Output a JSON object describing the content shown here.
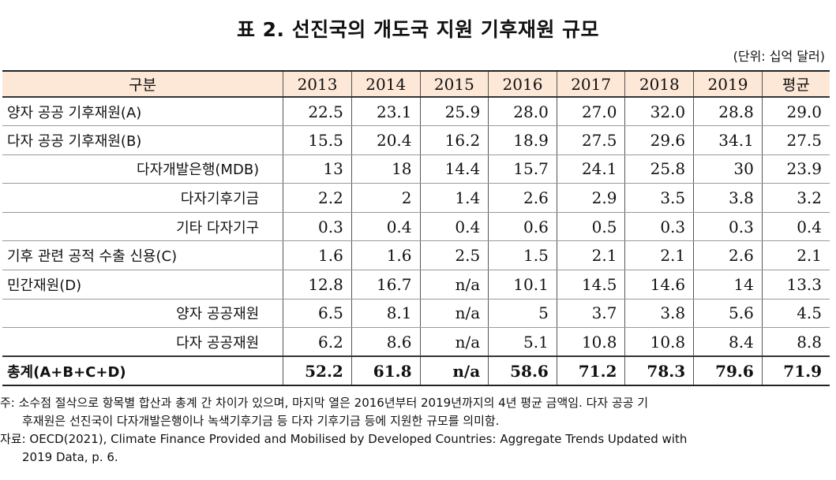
{
  "title": "표 2. 선진국의 개도국 지원 기후재원 규모",
  "unit": "(단위: 십억 달러)",
  "table": {
    "header": {
      "label": "구분",
      "years": [
        "2013",
        "2014",
        "2015",
        "2016",
        "2017",
        "2018",
        "2019"
      ],
      "avg": "평균"
    },
    "rows": [
      {
        "label": "양자 공공 기후재원(A)",
        "values": [
          "22.5",
          "23.1",
          "25.9",
          "28.0",
          "27.0",
          "32.0",
          "28.8",
          "29.0"
        ]
      },
      {
        "label": "다자 공공 기후재원(B)",
        "values": [
          "15.5",
          "20.4",
          "16.2",
          "18.9",
          "27.5",
          "29.6",
          "34.1",
          "27.5"
        ]
      },
      {
        "label": "다자개발은행(MDB)",
        "values": [
          "13",
          "18",
          "14.4",
          "15.7",
          "24.1",
          "25.8",
          "30",
          "23.9"
        ]
      },
      {
        "label": "다자기후기금",
        "values": [
          "2.2",
          "2",
          "1.4",
          "2.6",
          "2.9",
          "3.5",
          "3.8",
          "3.2"
        ]
      },
      {
        "label": "기타 다자기구",
        "values": [
          "0.3",
          "0.4",
          "0.4",
          "0.6",
          "0.5",
          "0.3",
          "0.3",
          "0.4"
        ]
      },
      {
        "label": "기후 관련 공적 수출 신용(C)",
        "values": [
          "1.6",
          "1.6",
          "2.5",
          "1.5",
          "2.1",
          "2.1",
          "2.6",
          "2.1"
        ]
      },
      {
        "label": "민간재원(D)",
        "values": [
          "12.8",
          "16.7",
          "n/a",
          "10.1",
          "14.5",
          "14.6",
          "14",
          "13.3"
        ]
      },
      {
        "label": "양자 공공재원",
        "values": [
          "6.5",
          "8.1",
          "n/a",
          "5",
          "3.7",
          "3.8",
          "5.6",
          "4.5"
        ]
      },
      {
        "label": "다자 공공재원",
        "values": [
          "6.2",
          "8.6",
          "n/a",
          "5.1",
          "10.8",
          "10.8",
          "8.4",
          "8.8"
        ]
      }
    ],
    "total": {
      "label": "총계(A+B+C+D)",
      "values": [
        "52.2",
        "61.8",
        "n/a",
        "58.6",
        "71.2",
        "78.3",
        "79.6",
        "71.9"
      ]
    }
  },
  "notes": {
    "note_line1": "주: 소수점 절삭으로 항목별 합산과 총계 간 차이가 있으며, 마지막 열은 2016년부터 2019년까지의 4년 평균 금액임. 다자 공공 기",
    "note_line2": "후재원은 선진국이 다자개발은행이나 녹색기후기금 등 다자 기후기금 등에 지원한 규모를 의미함.",
    "source_line1": "자료: OECD(2021), Climate Finance Provided and Mobilised by Developed Countries: Aggregate Trends Updated with",
    "source_line2": "2019 Data, p. 6."
  }
}
